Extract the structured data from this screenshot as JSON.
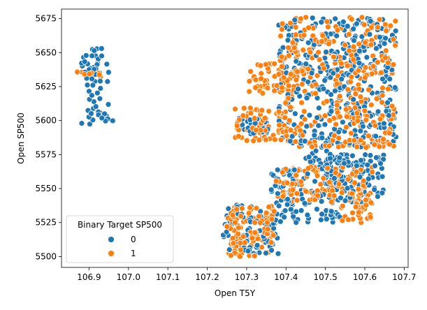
{
  "chart_data": {
    "type": "scatter",
    "xlabel": "Open T5Y",
    "ylabel": "Open SP500",
    "xlim": [
      106.83,
      107.71
    ],
    "ylim": [
      5492,
      5682
    ],
    "xticks": [
      106.9,
      107.0,
      107.1,
      107.2,
      107.3,
      107.4,
      107.5,
      107.6,
      107.7
    ],
    "xtick_labels": [
      "106.9",
      "107.0",
      "107.1",
      "107.2",
      "107.3",
      "107.4",
      "107.5",
      "107.6",
      "107.7"
    ],
    "yticks": [
      5500,
      5525,
      5550,
      5575,
      5600,
      5625,
      5650,
      5675
    ],
    "ytick_labels": [
      "5500",
      "5525",
      "5550",
      "5575",
      "5600",
      "5625",
      "5650",
      "5675"
    ],
    "grid": false,
    "legend": {
      "title": "Binary Target SP500",
      "placement": "lower-left",
      "entries": [
        {
          "label": "0",
          "color": "#1f77b4"
        },
        {
          "label": "1",
          "color": "#ff7f0e"
        }
      ]
    },
    "series": [
      {
        "name": "0",
        "color": "#1f77b4",
        "clusters": [
          {
            "x": [
              106.88,
              106.95
            ],
            "y": [
              5597,
              5655
            ],
            "count": 60
          },
          {
            "x": [
              106.93,
              106.96
            ],
            "y": [
              5596,
              5600
            ],
            "count": 2
          },
          {
            "x": [
              107.28,
              107.36
            ],
            "y": [
              5590,
              5602
            ],
            "count": 40
          },
          {
            "x": [
              107.24,
              107.38
            ],
            "y": [
              5502,
              5540
            ],
            "count": 90
          },
          {
            "x": [
              107.36,
              107.55
            ],
            "y": [
              5525,
              5565
            ],
            "count": 120
          },
          {
            "x": [
              107.38,
              107.68
            ],
            "y": [
              5580,
              5676
            ],
            "count": 380
          },
          {
            "x": [
              107.5,
              107.65
            ],
            "y": [
              5540,
              5575
            ],
            "count": 120
          },
          {
            "x": [
              107.45,
              107.52
            ],
            "y": [
              5565,
              5590
            ],
            "count": 30
          }
        ]
      },
      {
        "name": "1",
        "color": "#ff7f0e",
        "clusters": [
          {
            "x": [
              106.87,
              106.93
            ],
            "y": [
              5632,
              5636
            ],
            "count": 10
          },
          {
            "x": [
              107.25,
              107.37
            ],
            "y": [
              5500,
              5538
            ],
            "count": 110
          },
          {
            "x": [
              107.27,
              107.4
            ],
            "y": [
              5585,
              5610
            ],
            "count": 60
          },
          {
            "x": [
              107.3,
              107.46
            ],
            "y": [
              5620,
              5642
            ],
            "count": 60
          },
          {
            "x": [
              107.38,
              107.68
            ],
            "y": [
              5580,
              5676
            ],
            "count": 320
          },
          {
            "x": [
              107.37,
              107.62
            ],
            "y": [
              5540,
              5566
            ],
            "count": 110
          },
          {
            "x": [
              107.54,
              107.62
            ],
            "y": [
              5525,
              5550
            ],
            "count": 40
          }
        ]
      }
    ]
  }
}
